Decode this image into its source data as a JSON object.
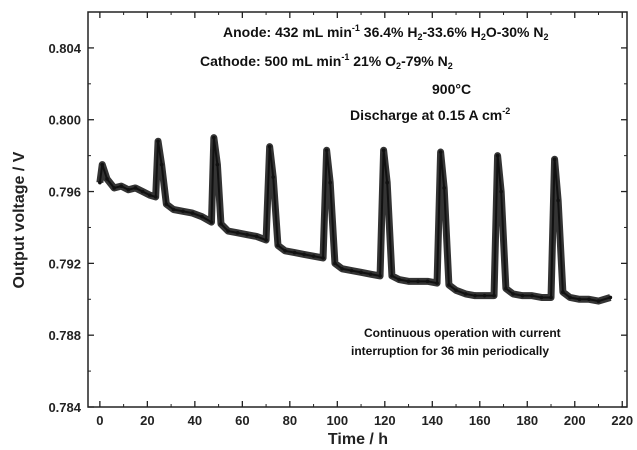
{
  "chart_data": {
    "type": "line",
    "xlabel": "Time / h",
    "ylabel": "Output voltage / V",
    "xlim": [
      -5,
      222
    ],
    "ylim": [
      0.784,
      0.806
    ],
    "x_ticks": [
      0,
      20,
      40,
      60,
      80,
      100,
      120,
      140,
      160,
      180,
      200,
      220
    ],
    "y_ticks": [
      0.784,
      0.788,
      0.792,
      0.796,
      0.8,
      0.804
    ],
    "y_tick_labels": [
      "0.784",
      "0.788",
      "0.792",
      "0.796",
      "0.800",
      "0.804"
    ],
    "grid": false,
    "series": [
      {
        "color": "#111111",
        "x": [
          0,
          1,
          3,
          6,
          9,
          12,
          15,
          18,
          21,
          23.5,
          24.5,
          26,
          28,
          31,
          35,
          39,
          43,
          47,
          48,
          49.5,
          51,
          54,
          58,
          62,
          66,
          70,
          71.5,
          73,
          75,
          78,
          82,
          86,
          90,
          94,
          95.5,
          97,
          99,
          102,
          106,
          110,
          114,
          118,
          119.5,
          121,
          123,
          126,
          130,
          134,
          138,
          142,
          143.5,
          145,
          147,
          150,
          154,
          158,
          162,
          166,
          167.5,
          169,
          171,
          174,
          178,
          182,
          186,
          190,
          191.5,
          193,
          195,
          198,
          202,
          206,
          210,
          215
        ],
        "y": [
          0.7965,
          0.7975,
          0.7967,
          0.7962,
          0.7963,
          0.7961,
          0.7962,
          0.796,
          0.7958,
          0.7957,
          0.7988,
          0.7975,
          0.7953,
          0.795,
          0.7949,
          0.7948,
          0.7946,
          0.7943,
          0.799,
          0.7975,
          0.7942,
          0.7938,
          0.7937,
          0.7936,
          0.7935,
          0.7933,
          0.7985,
          0.7968,
          0.793,
          0.7927,
          0.7926,
          0.7925,
          0.7924,
          0.7923,
          0.7983,
          0.7965,
          0.792,
          0.7917,
          0.7916,
          0.7915,
          0.7914,
          0.7913,
          0.7983,
          0.7965,
          0.7913,
          0.7911,
          0.791,
          0.791,
          0.791,
          0.7909,
          0.7982,
          0.7962,
          0.7908,
          0.7905,
          0.7903,
          0.7902,
          0.7902,
          0.7902,
          0.798,
          0.796,
          0.7906,
          0.7903,
          0.7902,
          0.7902,
          0.7901,
          0.7901,
          0.7978,
          0.7955,
          0.7904,
          0.7901,
          0.79,
          0.79,
          0.7899,
          0.7901
        ]
      }
    ],
    "annotations": {
      "anode_prefix": "Anode: 432 mL min",
      "anode_exp": "-1",
      "anode_mid": " 36.4% H",
      "anode_sub1": "2",
      "anode_mid2": "-33.6% H",
      "anode_sub2": "2",
      "anode_mid3": "O-30% N",
      "anode_sub3": "2",
      "cathode_prefix": "Cathode: 500 mL min",
      "cathode_exp": "-1",
      "cathode_mid": " 21% O",
      "cathode_sub1": "2",
      "cathode_mid2": "-79% N",
      "cathode_sub2": "2",
      "temperature_value": "900",
      "temperature_unit": "°C",
      "discharge_prefix": "Discharge at 0.15 A cm",
      "discharge_exp": "-2",
      "note_line1": "Continuous operation with current",
      "note_line2": "interruption for 36 min periodically"
    }
  }
}
